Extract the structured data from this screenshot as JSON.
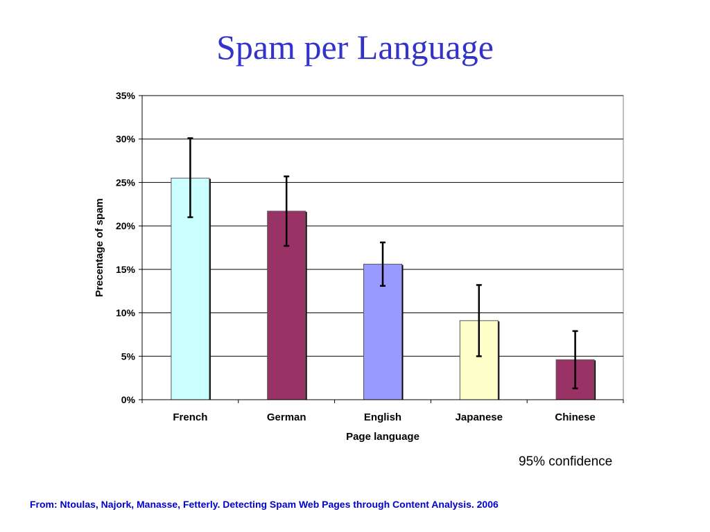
{
  "slide": {
    "title": "Spam per Language",
    "confidence_note": "95% confidence",
    "source": "From: Ntoulas, Najork, Manasse, Fetterly. Detecting Spam Web Pages through Content Analysis. 2006"
  },
  "colors": {
    "title": "#3333cc",
    "source": "#0000cc",
    "gridline": "#000000",
    "plot_border": "#808080"
  },
  "chart_data": {
    "type": "bar",
    "title": "",
    "xlabel": "Page language",
    "ylabel": "Precentage of spam",
    "ylim": [
      0,
      35
    ],
    "yticks": [
      0,
      5,
      10,
      15,
      20,
      25,
      30,
      35
    ],
    "ytick_labels": [
      "0%",
      "5%",
      "10%",
      "15%",
      "20%",
      "25%",
      "30%",
      "35%"
    ],
    "grid": true,
    "legend": "none",
    "categories": [
      "French",
      "German",
      "English",
      "Japanese",
      "Chinese"
    ],
    "values": [
      25.5,
      21.7,
      15.6,
      9.1,
      4.6
    ],
    "error_low": [
      21.0,
      17.7,
      13.1,
      5.0,
      1.3
    ],
    "error_high": [
      30.1,
      25.7,
      18.1,
      13.2,
      7.9
    ],
    "bar_colors": [
      "#ccffff",
      "#993366",
      "#9999ff",
      "#ffffcc",
      "#993366"
    ]
  }
}
